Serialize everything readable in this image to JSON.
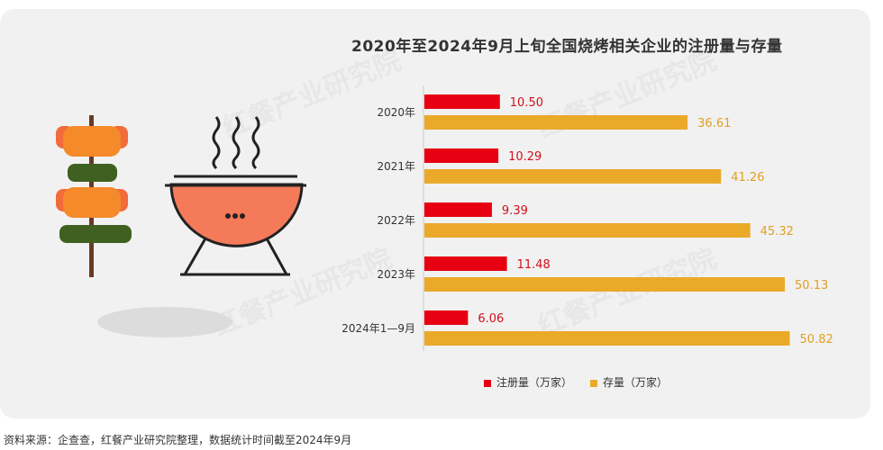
{
  "chart_data": {
    "type": "bar",
    "orientation": "horizontal",
    "title": "2020年至2024年9月上旬全国烧烤相关企业的注册量与存量",
    "categories": [
      "2020年",
      "2021年",
      "2022年",
      "2023年",
      "2024年1—9月"
    ],
    "series": [
      {
        "name": "注册量（万家）",
        "color": "#e60012",
        "values": [
          10.5,
          10.29,
          9.39,
          11.48,
          6.06
        ],
        "labels": [
          "10.50",
          "10.29",
          "9.39",
          "11.48",
          "6.06"
        ]
      },
      {
        "name": "存量（万家）",
        "color": "#eba92a",
        "values": [
          36.61,
          41.26,
          45.32,
          50.13,
          50.82
        ],
        "labels": [
          "36.61",
          "41.26",
          "45.32",
          "50.13",
          "50.82"
        ]
      }
    ],
    "legend": "bottom",
    "grid": false
  },
  "source": "资料来源：企查查，红餐产业研究院整理，数据统计时间截至2024年9月",
  "watermark": "红餐产业研究院"
}
